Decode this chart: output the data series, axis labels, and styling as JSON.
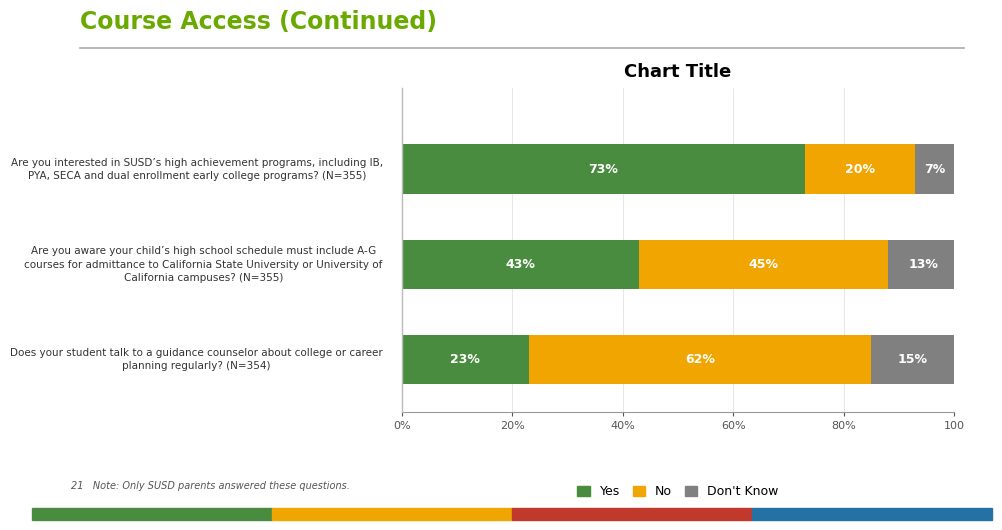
{
  "title": "Course Access (Continued)",
  "chart_title": "Chart Title",
  "questions": [
    "Are you interested in SUSD’s high achievement programs, including IB,\nPYA, SECA and dual enrollment early college programs? (N=355)",
    "Are you aware your child’s high school schedule must include A-G\ncourses for admittance to California State University or University of\nCalifornia campuses? (N=355)",
    "Does your student talk to a guidance counselor about college or career\nplanning regularly? (N=354)"
  ],
  "yes_values": [
    73,
    43,
    23
  ],
  "no_values": [
    20,
    45,
    62
  ],
  "dontknow_values": [
    7,
    13,
    15
  ],
  "yes_color": "#4a8c3f",
  "no_color": "#f0a500",
  "dontknow_color": "#808080",
  "bar_labels_yes": [
    "73%",
    "43%",
    "23%"
  ],
  "bar_labels_no": [
    "20%",
    "45%",
    "62%"
  ],
  "bar_labels_dk": [
    "7%",
    "13%",
    "15%"
  ],
  "legend_labels": [
    "Yes",
    "No",
    "Don't Know"
  ],
  "footnote": "21   Note: Only SUSD parents answered these questions.",
  "background_color": "#ffffff",
  "title_color": "#6aaa00",
  "chart_title_color": "#000000",
  "bottom_colors": [
    "#4a8c3f",
    "#f0a500",
    "#c0392b",
    "#2471a3"
  ]
}
